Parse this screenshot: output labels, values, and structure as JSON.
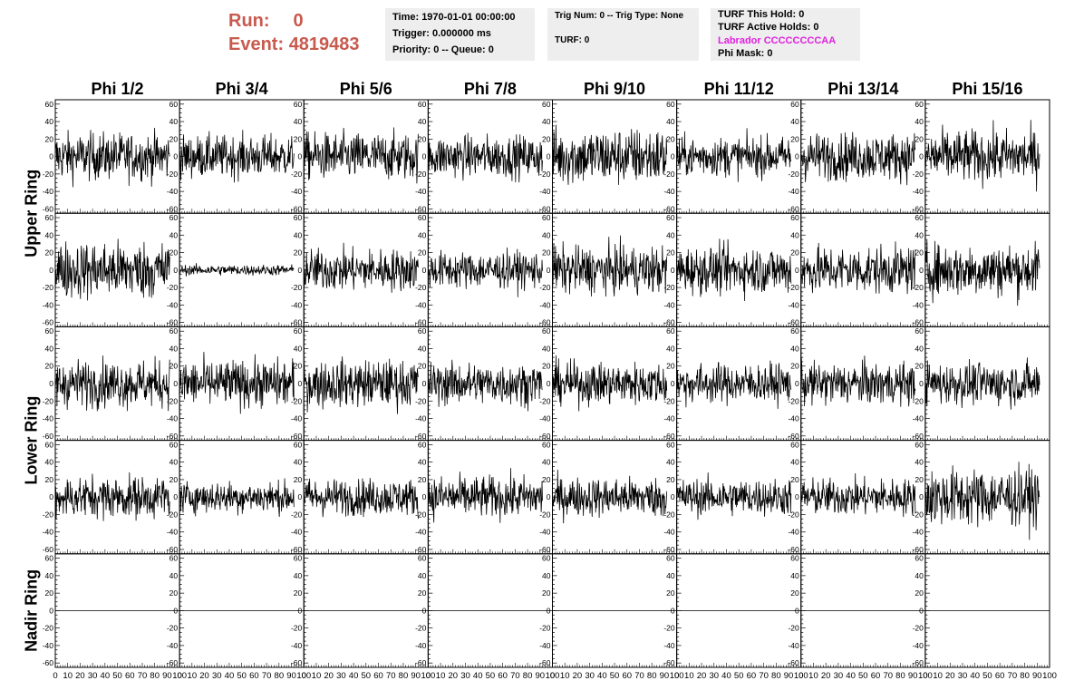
{
  "header": {
    "run_label": "Run:",
    "run_value": "0",
    "event_label": "Event:",
    "event_value": "4819483"
  },
  "info_box_1": {
    "time": "Time: 1970-01-01 00:00:00",
    "trigger": "Trigger: 0.000000 ms",
    "priority": "Priority: 0 -- Queue: 0"
  },
  "info_box_2": {
    "trig": "Trig Num: 0 -- Trig Type: None",
    "turf": "TURF: 0"
  },
  "info_box_3": {
    "hold": "TURF This Hold: 0",
    "active": "TURF Active Holds: 0",
    "labrador": "Labrador CCCCCCCCAA",
    "phimask": "Phi Mask: 0"
  },
  "colors": {
    "run_text": "#c85a4e",
    "labrador_text": "#e020e0",
    "trace": "#000000",
    "info_bg": "#eeeeee"
  },
  "chart_data": {
    "type": "line",
    "columns": [
      "Phi 1/2",
      "Phi 3/4",
      "Phi 5/6",
      "Phi 7/8",
      "Phi 9/10",
      "Phi 11/12",
      "Phi 13/14",
      "Phi 15/16"
    ],
    "rows": [
      "Upper Ring",
      "Lower Ring",
      "Nadir Ring"
    ],
    "xlim": [
      0,
      100
    ],
    "ylim": [
      -65,
      65
    ],
    "x_ticks": [
      0,
      10,
      20,
      30,
      40,
      50,
      60,
      70,
      80,
      90,
      100
    ],
    "y_ticks": [
      -60,
      -40,
      -20,
      0,
      20,
      40,
      60
    ],
    "panel_rows": 5,
    "panel_amplitude": [
      [
        18,
        16,
        18,
        16,
        22,
        15,
        18,
        20
      ],
      [
        22,
        4,
        16,
        14,
        18,
        18,
        18,
        20
      ],
      [
        18,
        18,
        18,
        16,
        16,
        15,
        16,
        16
      ],
      [
        16,
        12,
        14,
        16,
        15,
        14,
        14,
        22
      ],
      [
        0,
        0,
        0,
        0,
        0,
        0,
        0,
        0
      ]
    ]
  }
}
